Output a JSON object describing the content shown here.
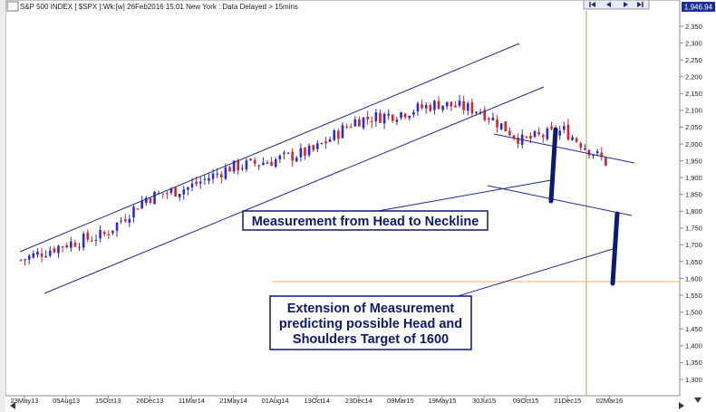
{
  "header": {
    "title": "S&P 500 INDEX [ $SPX ]:Wk:[w]  26Feb2016 15:01 New York : Data Delayed > 15mins",
    "price_badge": "1,946.94",
    "nav": {
      "first": "first-icon",
      "prev": "left-arrow-icon",
      "next": "right-arrow-icon",
      "last": "last-icon"
    }
  },
  "annotations": {
    "measure_label": "Measurement from Head to Neckline",
    "extension_label": [
      "Extension of Measurement",
      "predicting possible Head and",
      "Shoulders Target of 1600"
    ]
  },
  "colors": {
    "up_candle": "#2b2bd6",
    "down_candle": "#e02020",
    "trend_line": "#1e2a8a",
    "measure_bar": "#0d1a6e",
    "target_line": "#e8b060",
    "vertical_marker": "#a5a544",
    "label_border": "#0d1a6e",
    "label_text": "#0d1a6e"
  },
  "chart_data": {
    "type": "candlestick",
    "title": "S&P 500 INDEX [ $SPX ]:Wk:[w]",
    "ylim": [
      1250,
      2400
    ],
    "y_ticks": [
      "2,350",
      "2,300",
      "2,250",
      "2,200",
      "2,150",
      "2,100",
      "2,050",
      "2,000",
      "1,950",
      "1,900",
      "1,850",
      "1,800",
      "1,750",
      "1,700",
      "1,650",
      "1,600",
      "1,550",
      "1,500",
      "1,450",
      "1,400",
      "1,350",
      "1,300"
    ],
    "x_ticks": [
      "23May13",
      "05Aug13",
      "15Oct13",
      "26Dec13",
      "11Mar14",
      "21May14",
      "01Aug14",
      "13Oct14",
      "23Dec14",
      "09Mar15",
      "19May15",
      "30Jul15",
      "09Oct15",
      "21Dec15",
      "02Mar16"
    ],
    "last_price": 1946.94,
    "target_level": 1590,
    "anchors": [
      {
        "x": "23May13",
        "close": 1655
      },
      {
        "x": "05Aug13",
        "close": 1700
      },
      {
        "x": "15Oct13",
        "close": 1730
      },
      {
        "x": "26Dec13",
        "close": 1840
      },
      {
        "x": "11Mar14",
        "close": 1870
      },
      {
        "x": "21May14",
        "close": 1930
      },
      {
        "x": "01Aug14",
        "close": 1950
      },
      {
        "x": "13Oct14",
        "close": 1980
      },
      {
        "x": "23Dec14",
        "close": 2070
      },
      {
        "x": "09Mar15",
        "close": 2090
      },
      {
        "x": "19May15",
        "close": 2120
      },
      {
        "x": "30Jul15",
        "close": 2100
      },
      {
        "x": "09Oct15",
        "close": 2010
      },
      {
        "x": "21Dec15",
        "close": 2040
      },
      {
        "x": "02Mar16",
        "close": 1946
      }
    ]
  }
}
